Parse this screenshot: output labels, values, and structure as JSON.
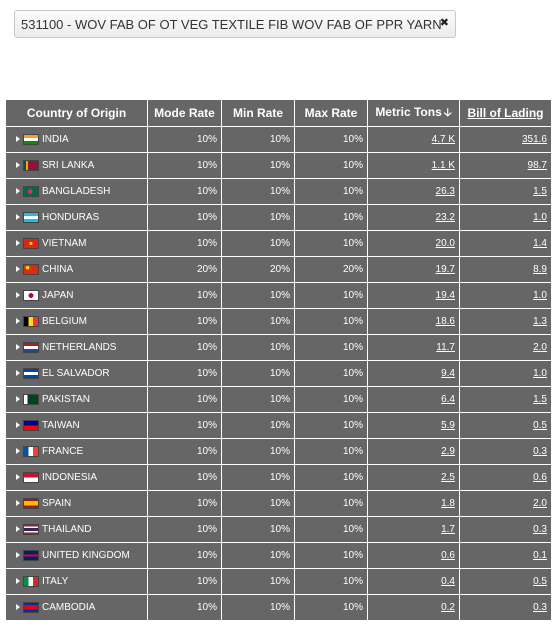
{
  "filter_chip": {
    "label": "531100 - WOV FAB OF OT VEG TEXTILE FIB WOV FAB OF PPR YARN"
  },
  "table": {
    "headers": {
      "country": "Country of Origin",
      "mode_rate": "Mode Rate",
      "min_rate": "Min Rate",
      "max_rate": "Max Rate",
      "metric_tons": "Metric Tons",
      "bill_of_lading": "Bill of Lading"
    },
    "rows": [
      {
        "country": "INDIA",
        "flag": "india-flag-icon",
        "mode": "10%",
        "min": "10%",
        "max": "10%",
        "tons": "4.7 K",
        "bol": "351.6"
      },
      {
        "country": "SRI LANKA",
        "flag": "sri-lanka-flag-icon",
        "mode": "10%",
        "min": "10%",
        "max": "10%",
        "tons": "1.1 K",
        "bol": "98.7"
      },
      {
        "country": "BANGLADESH",
        "flag": "bangladesh-flag-icon",
        "mode": "10%",
        "min": "10%",
        "max": "10%",
        "tons": "26.3",
        "bol": "1.5"
      },
      {
        "country": "HONDURAS",
        "flag": "honduras-flag-icon",
        "mode": "10%",
        "min": "10%",
        "max": "10%",
        "tons": "23.2",
        "bol": "1.0"
      },
      {
        "country": "VIETNAM",
        "flag": "vietnam-flag-icon",
        "mode": "10%",
        "min": "10%",
        "max": "10%",
        "tons": "20.0",
        "bol": "1.4"
      },
      {
        "country": "CHINA",
        "flag": "china-flag-icon",
        "mode": "20%",
        "min": "20%",
        "max": "20%",
        "tons": "19.7",
        "bol": "8.9"
      },
      {
        "country": "JAPAN",
        "flag": "japan-flag-icon",
        "mode": "10%",
        "min": "10%",
        "max": "10%",
        "tons": "19.4",
        "bol": "1.0"
      },
      {
        "country": "BELGIUM",
        "flag": "belgium-flag-icon",
        "mode": "10%",
        "min": "10%",
        "max": "10%",
        "tons": "18.6",
        "bol": "1.3"
      },
      {
        "country": "NETHERLANDS",
        "flag": "netherlands-flag-icon",
        "mode": "10%",
        "min": "10%",
        "max": "10%",
        "tons": "11.7",
        "bol": "2.0"
      },
      {
        "country": "EL SALVADOR",
        "flag": "el-salvador-flag-icon",
        "mode": "10%",
        "min": "10%",
        "max": "10%",
        "tons": "9.4",
        "bol": "1.0"
      },
      {
        "country": "PAKISTAN",
        "flag": "pakistan-flag-icon",
        "mode": "10%",
        "min": "10%",
        "max": "10%",
        "tons": "6.4",
        "bol": "1.5"
      },
      {
        "country": "TAIWAN",
        "flag": "taiwan-flag-icon",
        "mode": "10%",
        "min": "10%",
        "max": "10%",
        "tons": "5.9",
        "bol": "0.5"
      },
      {
        "country": "FRANCE",
        "flag": "france-flag-icon",
        "mode": "10%",
        "min": "10%",
        "max": "10%",
        "tons": "2.9",
        "bol": "0.3"
      },
      {
        "country": "INDONESIA",
        "flag": "indonesia-flag-icon",
        "mode": "10%",
        "min": "10%",
        "max": "10%",
        "tons": "2.5",
        "bol": "0.6"
      },
      {
        "country": "SPAIN",
        "flag": "spain-flag-icon",
        "mode": "10%",
        "min": "10%",
        "max": "10%",
        "tons": "1.8",
        "bol": "2.0"
      },
      {
        "country": "THAILAND",
        "flag": "thailand-flag-icon",
        "mode": "10%",
        "min": "10%",
        "max": "10%",
        "tons": "1.7",
        "bol": "0.3"
      },
      {
        "country": "UNITED KINGDOM",
        "flag": "united-kingdom-flag-icon",
        "mode": "10%",
        "min": "10%",
        "max": "10%",
        "tons": "0.6",
        "bol": "0.1"
      },
      {
        "country": "ITALY",
        "flag": "italy-flag-icon",
        "mode": "10%",
        "min": "10%",
        "max": "10%",
        "tons": "0.4",
        "bol": "0.5"
      },
      {
        "country": "CAMBODIA",
        "flag": "cambodia-flag-icon",
        "mode": "10%",
        "min": "10%",
        "max": "10%",
        "tons": "0.2",
        "bol": "0.3"
      }
    ]
  }
}
